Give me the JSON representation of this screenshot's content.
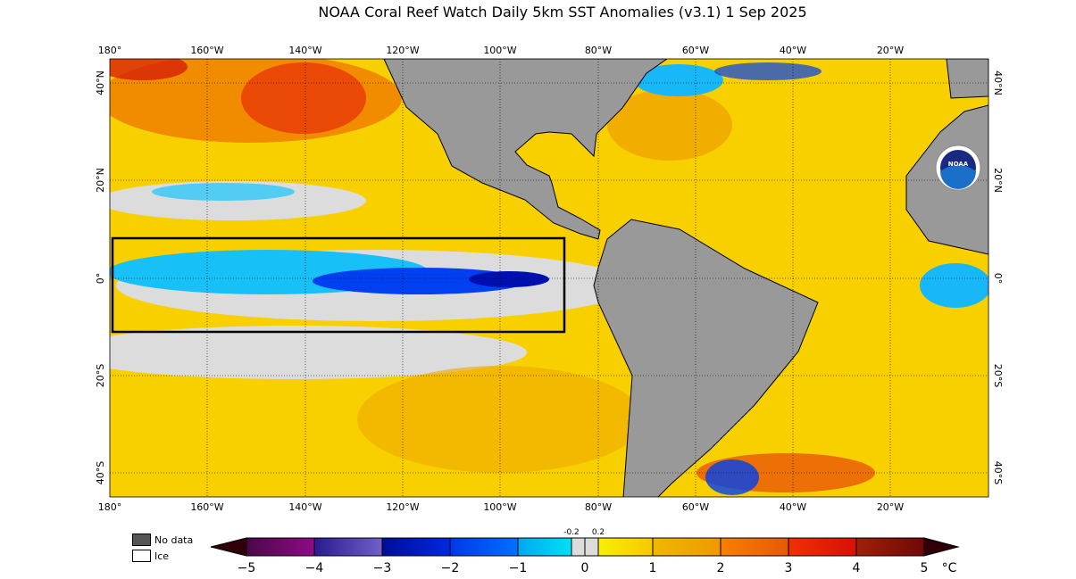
{
  "title": "NOAA Coral Reef Watch Daily 5km SST Anomalies  (v3.1)   1 Sep 2025",
  "lon_labels": [
    "180°",
    "160°W",
    "140°W",
    "120°W",
    "100°W",
    "80°W",
    "60°W",
    "40°W",
    "20°W"
  ],
  "lat_labels_left": [
    "40°N",
    "20°N",
    "0°",
    "20°S",
    "40°S"
  ],
  "lat_labels_right": [
    "40°N",
    "20°N",
    "0°",
    "20°S",
    "40°S"
  ],
  "legend": {
    "no_data": "No data",
    "ice": "Ice",
    "no_data_color": "#555555",
    "ice_color": "#ffffff"
  },
  "colorbar": {
    "ticks": [
      "−5",
      "−4",
      "−3",
      "−2",
      "−1",
      "0",
      "1",
      "2",
      "3",
      "4",
      "5"
    ],
    "small_ticks": [
      "-0.2",
      "0.2"
    ],
    "unit": "°C",
    "colors": [
      "#5a0a50",
      "#3a2aa0",
      "#0010a8",
      "#0050f0",
      "#00b8f0",
      "#dcdcdc",
      "#f8e000",
      "#f0a800",
      "#f07000",
      "#e82808",
      "#8a1400"
    ]
  },
  "logo": "NOAA",
  "colors": {
    "land": "#999999",
    "warm": "#f8c000",
    "cold": "#00b8f0"
  }
}
